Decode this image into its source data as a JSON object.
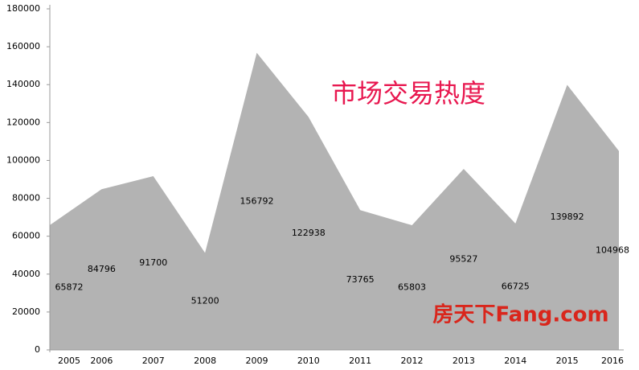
{
  "chart_data": {
    "type": "area",
    "title": "市场交易热度",
    "watermark": "房天下Fang.com",
    "categories": [
      "2005",
      "2006",
      "2007",
      "2008",
      "2009",
      "2010",
      "2011",
      "2012",
      "2013",
      "2014",
      "2015",
      "2016"
    ],
    "values": [
      65872,
      84796,
      91700,
      51200,
      156792,
      122938,
      73765,
      65803,
      95527,
      66725,
      139892,
      104968
    ],
    "color": "#b3b3b3",
    "ylim": [
      0,
      180000
    ],
    "yticks": [
      0,
      20000,
      40000,
      60000,
      80000,
      100000,
      120000,
      140000,
      160000,
      180000
    ]
  }
}
